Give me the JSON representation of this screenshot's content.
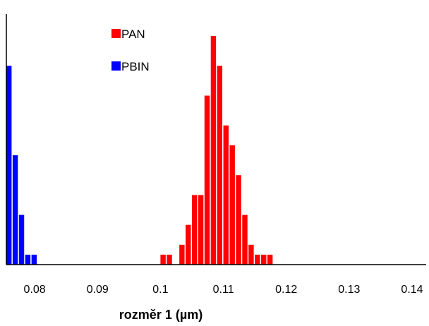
{
  "chart_data": {
    "type": "bar",
    "title": "",
    "xlabel": "rozměr 1 (µm)",
    "ylabel": "",
    "xlim": [
      0.0755,
      0.14
    ],
    "ylim": [
      0,
      12.6
    ],
    "xticks": [
      0.08,
      0.09,
      0.1,
      0.11,
      0.12,
      0.13,
      0.14
    ],
    "xtick_labels": [
      "0.08",
      "0.09",
      "0.1",
      "0.11",
      "0.12",
      "0.13",
      "0.14"
    ],
    "grid": false,
    "legend": "top-left",
    "bin_width": 0.001,
    "series": [
      {
        "name": "PAN",
        "color": "#ff0000",
        "x": [
          0.1,
          0.101,
          0.103,
          0.104,
          0.105,
          0.106,
          0.107,
          0.108,
          0.109,
          0.11,
          0.111,
          0.112,
          0.113,
          0.114,
          0.115,
          0.116,
          0.117
        ],
        "values": [
          0.5,
          0.5,
          1,
          2,
          3.5,
          3.5,
          8.5,
          11.5,
          10,
          7,
          6,
          4.5,
          2.5,
          1,
          0.5,
          0.5,
          0.5
        ]
      },
      {
        "name": "PBIN",
        "color": "#0000ff",
        "x": [
          0.0755,
          0.0765,
          0.0775,
          0.0785,
          0.0795
        ],
        "values": [
          10,
          5.5,
          2.5,
          0.5,
          0.5
        ]
      }
    ]
  }
}
